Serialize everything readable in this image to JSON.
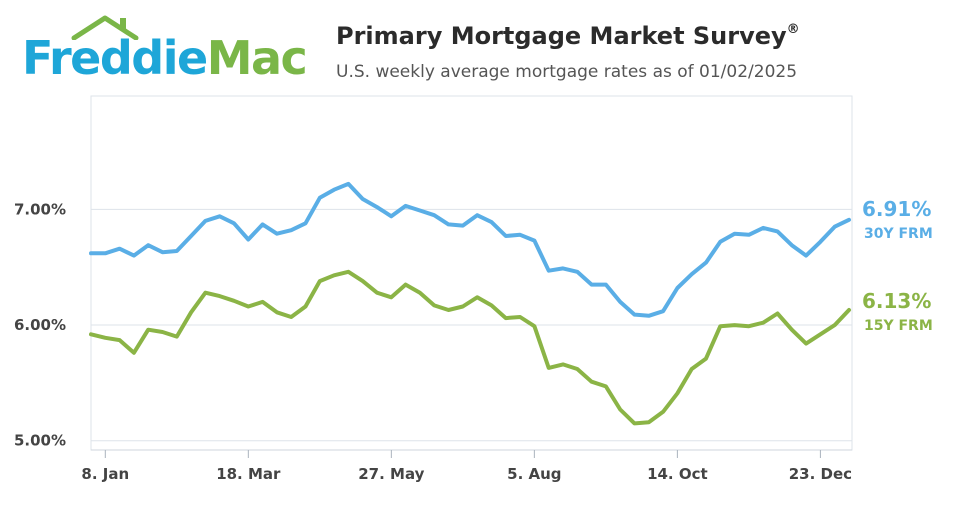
{
  "header": {
    "brand_part1": "Freddie",
    "brand_part2": "Mac",
    "title": "Primary Mortgage Market Survey",
    "title_mark": "®",
    "subtitle": "U.S. weekly average mortgage rates as of 01/02/2025"
  },
  "colors": {
    "brand_blue": "#1ea6d8",
    "brand_green": "#7ab648",
    "frm30": "#5aaee6",
    "frm15": "#8bb446",
    "grid": "#dde3ea"
  },
  "chart_data": {
    "type": "line",
    "title": "Primary Mortgage Market Survey",
    "subtitle": "U.S. weekly average mortgage rates as of 01/02/2025",
    "x_tick_labels": [
      "8. Jan",
      "18. Mar",
      "27. May",
      "5. Aug",
      "14. Oct",
      "23. Dec"
    ],
    "x_tick_index": [
      1,
      11,
      21,
      31,
      41,
      51
    ],
    "y_tick_labels": [
      "5.00%",
      "6.00%",
      "7.00%"
    ],
    "y_ticks": [
      5,
      6,
      7
    ],
    "ylim": [
      4.92,
      7.98
    ],
    "grid": true,
    "series": [
      {
        "name": "30Y FRM",
        "last_value_label": "6.91%",
        "values": [
          6.62,
          6.62,
          6.66,
          6.6,
          6.69,
          6.63,
          6.64,
          6.77,
          6.9,
          6.94,
          6.88,
          6.74,
          6.87,
          6.79,
          6.82,
          6.88,
          7.1,
          7.17,
          7.22,
          7.09,
          7.02,
          6.94,
          7.03,
          6.99,
          6.95,
          6.87,
          6.86,
          6.95,
          6.89,
          6.77,
          6.78,
          6.73,
          6.47,
          6.49,
          6.46,
          6.35,
          6.35,
          6.2,
          6.09,
          6.08,
          6.12,
          6.32,
          6.44,
          6.54,
          6.72,
          6.79,
          6.78,
          6.84,
          6.81,
          6.69,
          6.6,
          6.72,
          6.85,
          6.91
        ]
      },
      {
        "name": "15Y FRM",
        "last_value_label": "6.13%",
        "values": [
          5.92,
          5.89,
          5.87,
          5.76,
          5.96,
          5.94,
          5.9,
          6.11,
          6.28,
          6.25,
          6.21,
          6.16,
          6.2,
          6.11,
          6.07,
          6.16,
          6.38,
          6.43,
          6.46,
          6.38,
          6.28,
          6.24,
          6.35,
          6.28,
          6.17,
          6.13,
          6.16,
          6.24,
          6.17,
          6.06,
          6.07,
          5.99,
          5.63,
          5.66,
          5.62,
          5.51,
          5.47,
          5.27,
          5.15,
          5.16,
          5.25,
          5.41,
          5.62,
          5.71,
          5.99,
          6.0,
          5.99,
          6.02,
          6.1,
          5.96,
          5.84,
          5.92,
          6.0,
          6.13
        ]
      }
    ]
  }
}
